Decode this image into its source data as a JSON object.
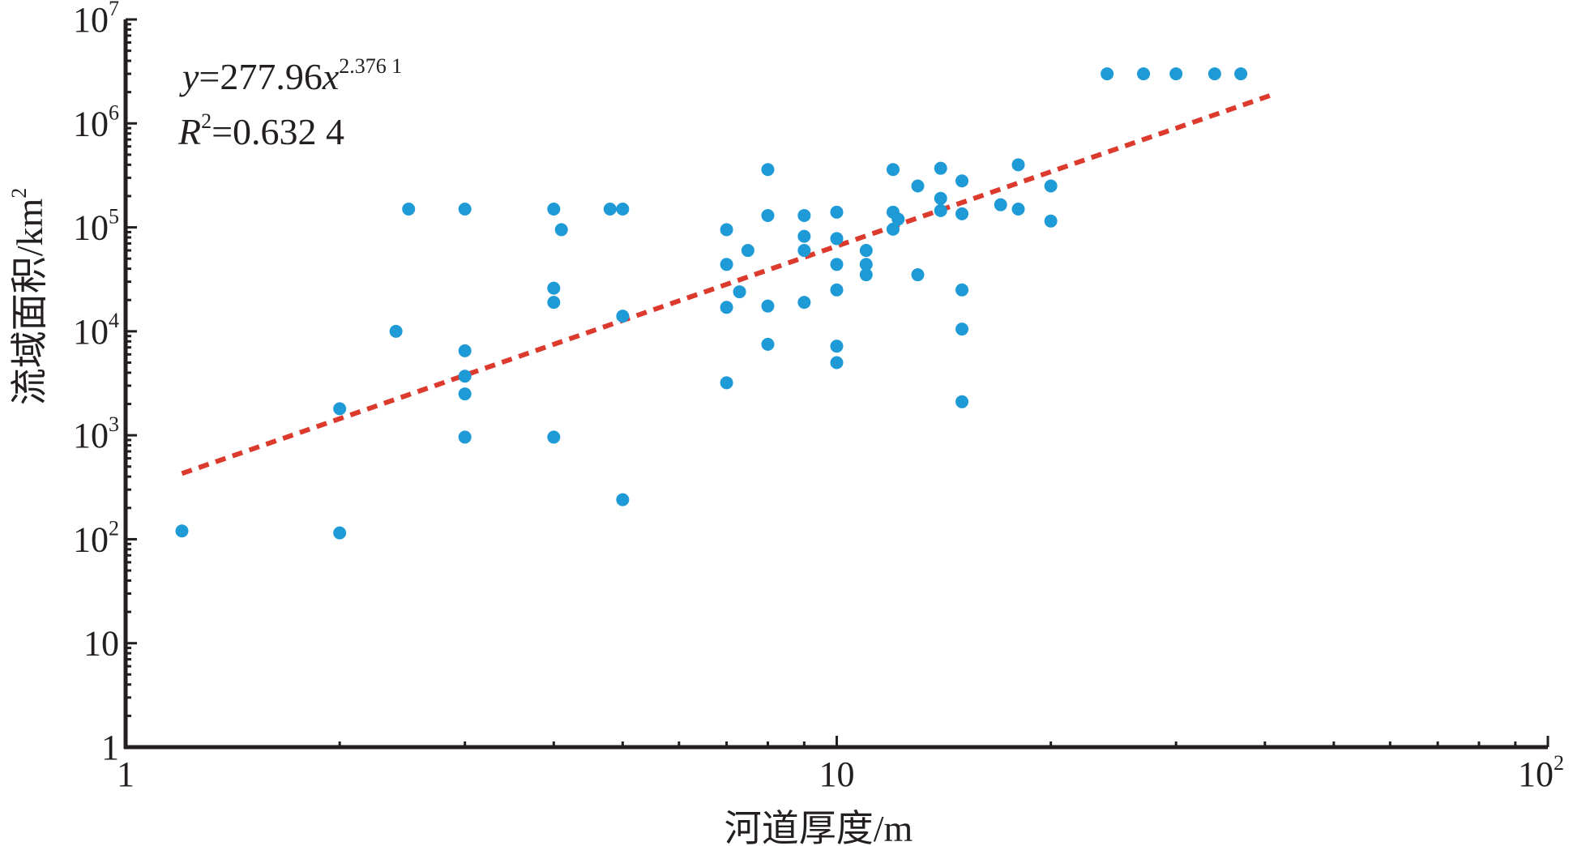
{
  "chart_data": {
    "type": "scatter",
    "x_scale": "log",
    "y_scale": "log",
    "xlim": [
      1,
      100
    ],
    "ylim": [
      1,
      10000000
    ],
    "xlabel": "河道厚度/m",
    "ylabel": "流域面积/km²",
    "ylabel_parts": {
      "base": "流域面积/km",
      "sup": "2"
    },
    "x_ticks": [
      {
        "value": 1,
        "base": "1",
        "exp": ""
      },
      {
        "value": 10,
        "base": "10",
        "exp": ""
      },
      {
        "value": 100,
        "base": "10",
        "exp": "2"
      }
    ],
    "y_ticks": [
      {
        "value": 1,
        "base": "1",
        "exp": ""
      },
      {
        "value": 10,
        "base": "10",
        "exp": ""
      },
      {
        "value": 100,
        "base": "10",
        "exp": "2"
      },
      {
        "value": 1000,
        "base": "10",
        "exp": "3"
      },
      {
        "value": 10000,
        "base": "10",
        "exp": "4"
      },
      {
        "value": 100000,
        "base": "10",
        "exp": "5"
      },
      {
        "value": 1000000,
        "base": "10",
        "exp": "6"
      },
      {
        "value": 10000000,
        "base": "10",
        "exp": "7"
      }
    ],
    "equation": {
      "y": "y",
      "eq_mid": "=277.96",
      "x": "x",
      "exponent": "2.376 1"
    },
    "r_squared": {
      "r": "R",
      "sup": "2",
      "value": "=0.632 4"
    },
    "fit": {
      "a": 277.96,
      "b": 2.3761,
      "x_range": [
        1.2,
        41
      ]
    },
    "points_color": "#1e9bd7",
    "fit_color": "#dd3a2e",
    "axis_color": "#231f20",
    "points": [
      [
        1.2,
        120
      ],
      [
        2,
        1800
      ],
      [
        2,
        115
      ],
      [
        2.4,
        10000
      ],
      [
        2.5,
        150000
      ],
      [
        3,
        150000
      ],
      [
        3,
        6500
      ],
      [
        3,
        3700
      ],
      [
        3,
        2500
      ],
      [
        3,
        960
      ],
      [
        4,
        150000
      ],
      [
        4,
        26000
      ],
      [
        4,
        19000
      ],
      [
        4,
        960
      ],
      [
        4.1,
        95000
      ],
      [
        4.8,
        150000
      ],
      [
        5,
        150000
      ],
      [
        5,
        14000
      ],
      [
        5,
        240
      ],
      [
        7,
        95000
      ],
      [
        7,
        44000
      ],
      [
        7,
        17000
      ],
      [
        7,
        3200
      ],
      [
        7.3,
        24000
      ],
      [
        7.5,
        60000
      ],
      [
        8,
        360000
      ],
      [
        8,
        130000
      ],
      [
        8,
        17500
      ],
      [
        8,
        7500
      ],
      [
        9,
        130000
      ],
      [
        9,
        82000
      ],
      [
        9,
        60000
      ],
      [
        9,
        19000
      ],
      [
        10,
        140000
      ],
      [
        10,
        78000
      ],
      [
        10,
        44000
      ],
      [
        10,
        25000
      ],
      [
        10,
        7200
      ],
      [
        10,
        5000
      ],
      [
        11,
        60000
      ],
      [
        11,
        44000
      ],
      [
        11,
        35000
      ],
      [
        12,
        360000
      ],
      [
        12,
        140000
      ],
      [
        12,
        96000
      ],
      [
        12.2,
        120000
      ],
      [
        13,
        250000
      ],
      [
        13,
        35000
      ],
      [
        14,
        370000
      ],
      [
        14,
        190000
      ],
      [
        14,
        145000
      ],
      [
        15,
        280000
      ],
      [
        15,
        135000
      ],
      [
        15,
        25000
      ],
      [
        15,
        10500
      ],
      [
        15,
        2100
      ],
      [
        17,
        165000
      ],
      [
        18,
        400000
      ],
      [
        18,
        150000
      ],
      [
        20,
        250000
      ],
      [
        20,
        115000
      ],
      [
        24,
        3000000
      ],
      [
        27,
        3000000
      ],
      [
        30,
        3000000
      ],
      [
        34,
        3000000
      ],
      [
        37,
        3000000
      ]
    ]
  }
}
